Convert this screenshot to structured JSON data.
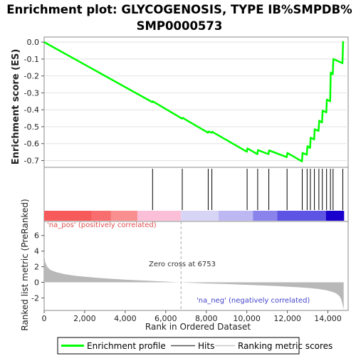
{
  "chart_data": {
    "type": "line",
    "title_lines": [
      "Enrichment plot: GLYCOGENOSIS, TYPE IB%SMPDB%",
      "SMP0000573"
    ],
    "es_panel": {
      "ylabel": "Enrichment score (ES)",
      "ylim": [
        -0.74,
        0.03
      ],
      "yticks": [
        0.0,
        -0.1,
        -0.2,
        -0.3,
        -0.4,
        -0.5,
        -0.6,
        -0.7
      ],
      "ytick_labels": [
        "0.0",
        "-0.1",
        "-0.2",
        "-0.3",
        "-0.4",
        "-0.5",
        "-0.6",
        "-0.7"
      ],
      "line_color": "#00ff00",
      "series": [
        {
          "x": [
            0,
            5340,
            5360,
            6800,
            6830,
            8080,
            8110,
            8260,
            8290,
            10000,
            10030,
            10520,
            10550,
            11070,
            11100,
            11970,
            12000,
            12720,
            12750,
            12960,
            12990,
            13120,
            13150,
            13320,
            13350,
            13540,
            13570,
            13710,
            13740,
            13920,
            13950,
            14110,
            14140,
            14240,
            14270,
            14720,
            14750
          ],
          "y": [
            0.0,
            -0.355,
            -0.35,
            -0.452,
            -0.447,
            -0.535,
            -0.528,
            -0.535,
            -0.53,
            -0.648,
            -0.628,
            -0.662,
            -0.638,
            -0.662,
            -0.64,
            -0.68,
            -0.655,
            -0.705,
            -0.655,
            -0.665,
            -0.615,
            -0.625,
            -0.565,
            -0.575,
            -0.515,
            -0.525,
            -0.465,
            -0.475,
            -0.405,
            -0.415,
            -0.34,
            -0.35,
            -0.18,
            -0.19,
            -0.1,
            -0.125,
            0.005
          ]
        }
      ]
    },
    "hits": [
      5350,
      6815,
      8095,
      8275,
      10015,
      10535,
      11085,
      11985,
      12735,
      12975,
      13135,
      13335,
      13555,
      13725,
      13935,
      14125,
      14255,
      14735
    ],
    "color_bar": {
      "segments": [
        {
          "from": 0,
          "to": 2350,
          "color": "#f75a5a"
        },
        {
          "from": 2350,
          "to": 3300,
          "color": "#f86e6e"
        },
        {
          "from": 3300,
          "to": 4600,
          "color": "#f98f8f"
        },
        {
          "from": 4600,
          "to": 6753,
          "color": "#fbc0d8"
        },
        {
          "from": 6753,
          "to": 8600,
          "color": "#d8d4f6"
        },
        {
          "from": 8600,
          "to": 10300,
          "color": "#bdb8f2"
        },
        {
          "from": 10300,
          "to": 11500,
          "color": "#8a83ec"
        },
        {
          "from": 11500,
          "to": 13900,
          "color": "#5e54e4"
        },
        {
          "from": 13900,
          "to": 14800,
          "color": "#1a00cc"
        }
      ],
      "label_pos": "'na_pos' (positively correlated)",
      "label_neg": "'na_neg' (negatively correlated)",
      "pos_color": "#e05050",
      "neg_color": "#4444cc"
    },
    "metric_panel": {
      "ylabel": "Ranked list metric (PreRanked)",
      "ylim": [
        -3.6,
        7.8
      ],
      "yticks": [
        6,
        4,
        2,
        0,
        -2
      ],
      "ytick_labels": [
        "6",
        "4",
        "2",
        "0",
        "-2"
      ],
      "fill_color": "#b8b8b8",
      "x": [
        0,
        50,
        150,
        300,
        600,
        1000,
        1500,
        2000,
        2500,
        3000,
        3500,
        4000,
        4500,
        5000,
        5500,
        6000,
        6500,
        6753,
        7000,
        7500,
        8000,
        8500,
        9000,
        9500,
        10000,
        10500,
        11000,
        11500,
        12000,
        12500,
        13000,
        13500,
        13900,
        14200,
        14400,
        14550,
        14650,
        14720,
        14780
      ],
      "y": [
        3.8,
        2.6,
        2.0,
        1.6,
        1.3,
        1.05,
        0.85,
        0.72,
        0.6,
        0.5,
        0.42,
        0.35,
        0.28,
        0.22,
        0.15,
        0.09,
        0.03,
        0.0,
        -0.04,
        -0.09,
        -0.14,
        -0.18,
        -0.22,
        -0.27,
        -0.32,
        -0.37,
        -0.42,
        -0.48,
        -0.55,
        -0.63,
        -0.72,
        -0.85,
        -1.0,
        -1.2,
        -1.4,
        -1.7,
        -2.1,
        -2.8,
        -3.5
      ],
      "zero_cross_label": "Zero cross at 6753",
      "zero_cross_x": 6753
    },
    "x_axis": {
      "xlabel": "Rank in Ordered Dataset",
      "xlim": [
        0,
        15000
      ],
      "xticks": [
        0,
        2000,
        4000,
        6000,
        8000,
        10000,
        12000,
        14000
      ],
      "xtick_labels": [
        "0",
        "2,000",
        "4,000",
        "6,000",
        "8,000",
        "10,000",
        "12,000",
        "14,000"
      ]
    },
    "legend": {
      "placement": "bottom",
      "items": [
        {
          "label": "Enrichment profile",
          "color": "#00ff00",
          "kind": "thick-line"
        },
        {
          "label": "Hits",
          "color": "#555555",
          "kind": "line"
        },
        {
          "label": "Ranking metric scores",
          "color": "#c8c8c8",
          "kind": "line"
        }
      ]
    }
  }
}
